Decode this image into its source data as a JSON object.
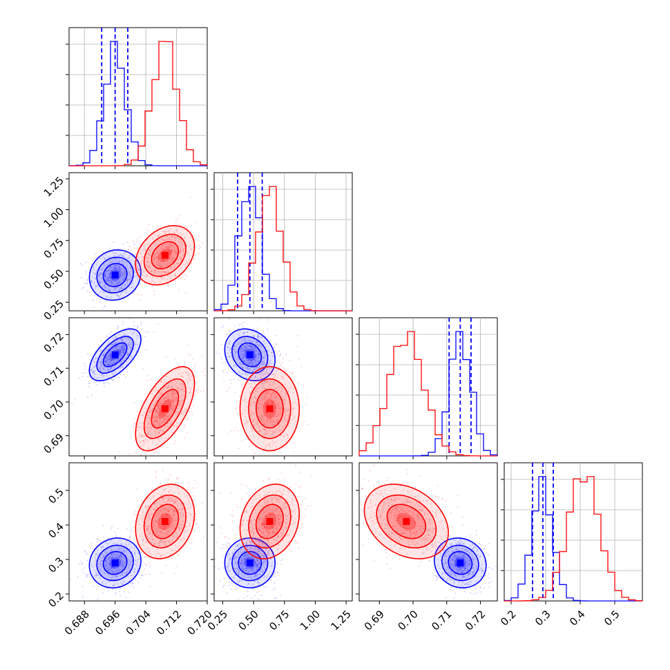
{
  "colors": {
    "series_a": "#0000ff",
    "series_b": "#ff0000",
    "grid": "#b0b0b0",
    "axis": "#000000"
  },
  "chart_data": {
    "type": "corner",
    "grid": true,
    "parameters": [
      {
        "range": [
          0.684,
          0.72
        ],
        "ticks": [
          0.688,
          0.696,
          0.704,
          0.712,
          0.72
        ],
        "tick_labels": [
          "0.688",
          "0.696",
          "0.704",
          "0.712",
          "0.720"
        ]
      },
      {
        "range": [
          0.18,
          1.3
        ],
        "ticks": [
          0.25,
          0.5,
          0.75,
          1.0,
          1.25
        ],
        "tick_labels": [
          "0.25",
          "0.50",
          "0.75",
          "1.00",
          "1.25"
        ]
      },
      {
        "range": [
          0.684,
          0.725
        ],
        "ticks": [
          0.69,
          0.7,
          0.71,
          0.72
        ],
        "tick_labels": [
          "0.69",
          "0.70",
          "0.71",
          "0.72"
        ]
      },
      {
        "range": [
          0.18,
          0.58
        ],
        "ticks": [
          0.2,
          0.3,
          0.4,
          0.5
        ],
        "tick_labels": [
          "0.2",
          "0.3",
          "0.4",
          "0.5"
        ]
      }
    ],
    "series": [
      {
        "color": "#0000ff",
        "mean": [
          0.696,
          0.47,
          0.714,
          0.29
        ],
        "sd": [
          0.0028,
          0.085,
          0.0032,
          0.03
        ],
        "corr": [
          [
            1,
            0.1,
            0.6,
            0.1
          ],
          [
            0.1,
            1,
            -0.2,
            0.0
          ],
          [
            0.6,
            -0.2,
            1,
            -0.1
          ],
          [
            0.1,
            0.0,
            -0.1,
            1
          ]
        ],
        "quantiles": [
          [
            0.6925,
            0.696,
            0.6993
          ],
          [
            0.37,
            0.47,
            0.57
          ],
          [
            0.7107,
            0.714,
            0.7172
          ],
          [
            0.262,
            0.292,
            0.322
          ]
        ],
        "show_quantiles": true
      },
      {
        "color": "#ff0000",
        "mean": [
          0.709,
          0.63,
          0.698,
          0.41
        ],
        "sd": [
          0.0032,
          0.1,
          0.0052,
          0.045
        ],
        "corr": [
          [
            1,
            0.3,
            0.6,
            0.2
          ],
          [
            0.3,
            1,
            0.0,
            0.2
          ],
          [
            0.6,
            0.0,
            1,
            -0.3
          ],
          [
            0.2,
            0.2,
            -0.3,
            1
          ]
        ],
        "show_quantiles": false
      }
    ]
  }
}
